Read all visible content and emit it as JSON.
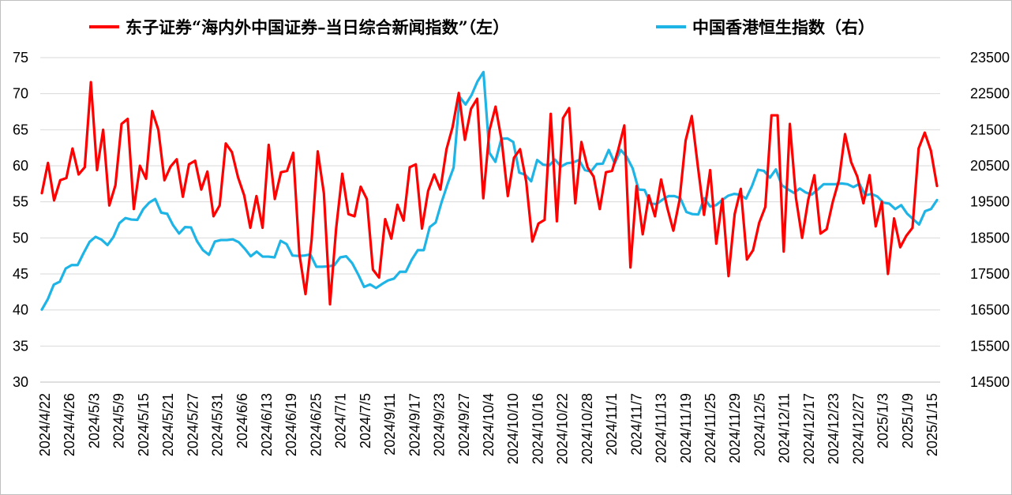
{
  "chart_data": {
    "type": "line",
    "legend": {
      "position": "top",
      "entries": [
        {
          "label": "东子证券“海内外中国证券–当日综合新闻指数”（左）",
          "color": "#ff0000"
        },
        {
          "label": "中国香港恒生指数（右）",
          "color": "#1eb4e6"
        }
      ]
    },
    "grid": "horizontal",
    "y_left": {
      "min": 30,
      "max": 75,
      "ticks": [
        30,
        35,
        40,
        45,
        50,
        55,
        60,
        65,
        70,
        75
      ]
    },
    "y_right": {
      "min": 14500,
      "max": 23500,
      "ticks": [
        14500,
        15500,
        16500,
        17500,
        18500,
        19500,
        20500,
        21500,
        22500,
        23500
      ]
    },
    "x_tick_labels": [
      "2024/4/22",
      "2024/4/26",
      "2024/5/3",
      "2024/5/9",
      "2024/5/15",
      "2024/5/21",
      "2024/5/27",
      "2024/5/31",
      "2024/6/6",
      "2024/6/13",
      "2024/6/19",
      "2024/6/25",
      "2024/7/1",
      "2024/7/5",
      "2024/9/11",
      "2024/9/17",
      "2024/9/23",
      "2024/9/27",
      "2024/10/4",
      "2024/10/10",
      "2024/10/16",
      "2024/10/22",
      "2024/10/28",
      "2024/11/1",
      "2024/11/7",
      "2024/11/13",
      "2024/11/19",
      "2024/11/25",
      "2024/11/29",
      "2024/12/5",
      "2024/12/11",
      "2024/12/17",
      "2024/12/23",
      "2024/12/27",
      "2025/1/3",
      "2025/1/9",
      "2025/1/15"
    ],
    "series": [
      {
        "name": "东子证券“海内外中国证券–当日综合新闻指数”（左）",
        "axis": "left",
        "color": "#ff0000",
        "values": [
          56.2,
          60.4,
          55.2,
          58.0,
          58.3,
          62.4,
          58.8,
          59.8,
          71.6,
          59.4,
          65.0,
          54.5,
          57.3,
          65.8,
          66.5,
          54.0,
          60.0,
          58.2,
          67.6,
          65.0,
          58.0,
          59.9,
          60.9,
          55.7,
          60.2,
          60.7,
          56.7,
          59.2,
          53.0,
          54.5,
          63.1,
          61.9,
          58.4,
          55.9,
          51.4,
          55.8,
          51.4,
          62.9,
          55.4,
          59.1,
          59.3,
          61.8,
          47.8,
          42.2,
          49.7,
          62.0,
          56.2,
          40.8,
          51.3,
          58.9,
          53.3,
          53.0,
          57.1,
          55.4,
          45.6,
          44.5,
          52.6,
          49.9,
          54.6,
          52.4,
          59.8,
          60.2,
          51.3,
          56.5,
          58.8,
          56.7,
          62.3,
          65.4,
          70.1,
          63.6,
          67.9,
          69.3,
          55.5,
          64.9,
          68.2,
          63.5,
          55.8,
          61.1,
          62.3,
          57.8,
          49.5,
          52.0,
          52.5,
          67.2,
          52.3,
          66.6,
          68.0,
          54.8,
          63.3,
          59.8,
          58.5,
          54.0,
          59.1,
          59.3,
          62.2,
          65.6,
          45.9,
          57.2,
          50.5,
          55.9,
          53.0,
          58.1,
          54.2,
          51.0,
          55.2,
          63.5,
          66.9,
          59.9,
          53.2,
          59.4,
          49.2,
          55.4,
          44.7,
          53.3,
          56.8,
          47.0,
          48.3,
          52.1,
          54.3,
          67.0,
          67.0,
          48.1,
          65.8,
          55.5,
          50.0,
          55.3,
          58.7,
          50.6,
          51.2,
          55.0,
          58.0,
          64.4,
          60.5,
          58.5,
          54.8,
          58.7,
          51.6,
          55.0,
          45.0,
          52.7,
          48.7,
          50.3,
          51.4,
          62.4,
          64.6,
          62.1,
          57.2
        ]
      },
      {
        "name": "中国香港恒生指数（右）",
        "axis": "right",
        "color": "#1eb4e6",
        "values": [
          16511,
          16800,
          17202,
          17284,
          17651,
          17746,
          17746,
          18080,
          18390,
          18530,
          18450,
          18300,
          18525,
          18910,
          19050,
          19010,
          19000,
          19300,
          19480,
          19580,
          19200,
          19170,
          18850,
          18620,
          18800,
          18790,
          18410,
          18160,
          18030,
          18400,
          18440,
          18440,
          18460,
          18380,
          18200,
          17990,
          18120,
          17980,
          17980,
          17960,
          18420,
          18330,
          18010,
          18000,
          18010,
          18040,
          17700,
          17700,
          17710,
          17740,
          17960,
          17990,
          17800,
          17490,
          17140,
          17210,
          17110,
          17220,
          17320,
          17370,
          17560,
          17560,
          17900,
          18160,
          18160,
          18800,
          18930,
          19500,
          20000,
          20450,
          22410,
          22200,
          22460,
          22840,
          23100,
          20860,
          20610,
          21250,
          21260,
          21160,
          20310,
          20250,
          20070,
          20660,
          20530,
          20510,
          20670,
          20480,
          20570,
          20590,
          20660,
          20380,
          20340,
          20550,
          20560,
          20940,
          20570,
          20940,
          20750,
          20430,
          19840,
          19830,
          19450,
          19440,
          19560,
          19660,
          19660,
          19600,
          19220,
          19160,
          19150,
          19600,
          19370,
          19410,
          19550,
          19670,
          19720,
          19700,
          19590,
          19940,
          20390,
          20360,
          20170,
          20400,
          19960,
          19850,
          19750,
          19870,
          19760,
          19700,
          19840,
          19990,
          19990,
          19990,
          20010,
          19990,
          19910,
          20000,
          19680,
          19720,
          19650,
          19480,
          19450,
          19300,
          19410,
          19170,
          19020,
          18870,
          19240,
          19300,
          19550
        ]
      }
    ]
  }
}
